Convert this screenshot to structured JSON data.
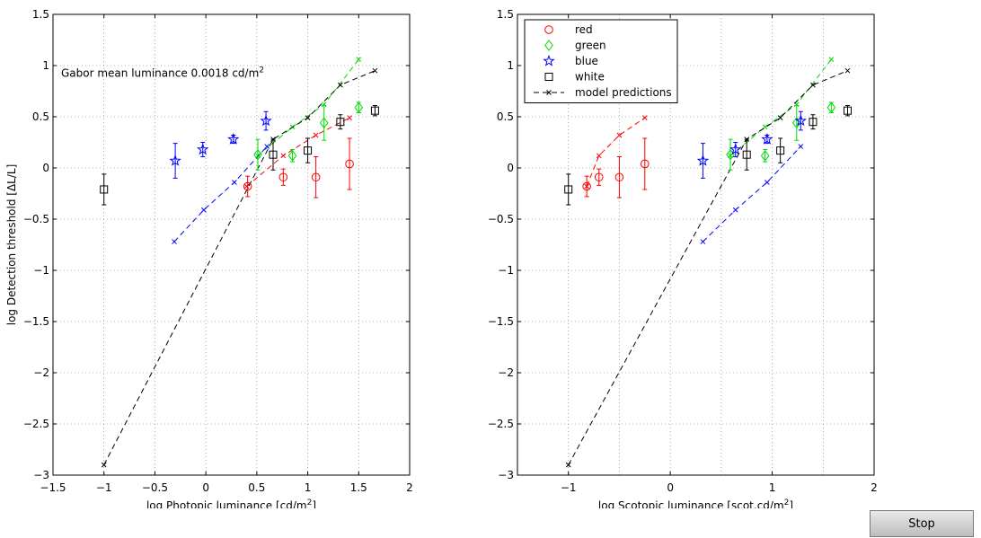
{
  "stop_button": {
    "label": "Stop"
  },
  "colors": {
    "red": "#ff0000",
    "green": "#00dd00",
    "blue": "#0000ff",
    "white": "#000000",
    "model": "#000000"
  },
  "legend_entries": [
    {
      "label": "red",
      "marker": "circle",
      "color": "#ff0000"
    },
    {
      "label": "green",
      "marker": "diamond",
      "color": "#00dd00"
    },
    {
      "label": "blue",
      "marker": "star",
      "color": "#0000ff"
    },
    {
      "label": "white",
      "marker": "square",
      "color": "#000000"
    },
    {
      "label": "model predictions",
      "marker": "dashed-x",
      "color": "#000000"
    }
  ],
  "chart_data": [
    {
      "type": "scatter",
      "title": "",
      "annotation": {
        "text": "Gabor mean luminance 0.0018 cd/m",
        "superscript": "2"
      },
      "xlabel": {
        "text": "log Photopic luminance [cd/m",
        "superscript": "2",
        "suffix": "]"
      },
      "ylabel": "log Detection threshold [ΔL/L]",
      "xlim": [
        -1.5,
        2
      ],
      "ylim": [
        -3,
        1.5
      ],
      "xticks": [
        -1.5,
        -1,
        -0.5,
        0,
        0.5,
        1,
        1.5,
        2
      ],
      "xtick_labels": [
        "−1.5",
        "−1",
        "−0.5",
        "0",
        "0.5",
        "1",
        "1.5",
        "2"
      ],
      "yticks": [
        -3,
        -2.5,
        -2,
        -1.5,
        -1,
        -0.5,
        0,
        0.5,
        1,
        1.5
      ],
      "ytick_labels": [
        "−3",
        "−2.5",
        "−2",
        "−1.5",
        "−1",
        "−0.5",
        "0",
        "0.5",
        "1",
        "1.5"
      ],
      "grid": true,
      "legend": null,
      "series": [
        {
          "name": "red",
          "x": [
            0.41,
            0.76,
            1.08,
            1.41
          ],
          "y": [
            -0.18,
            -0.09,
            -0.09,
            0.04
          ],
          "err": [
            0.1,
            0.08,
            0.2,
            0.25
          ]
        },
        {
          "name": "green",
          "x": [
            0.51,
            0.85,
            1.16,
            1.5
          ],
          "y": [
            0.13,
            0.12,
            0.44,
            0.59
          ],
          "err": [
            0.15,
            0.06,
            0.17,
            0.05
          ]
        },
        {
          "name": "blue",
          "x": [
            -0.3,
            -0.03,
            0.27,
            0.59
          ],
          "y": [
            0.07,
            0.18,
            0.28,
            0.46
          ],
          "err": [
            0.17,
            0.07,
            0.04,
            0.09
          ]
        },
        {
          "name": "white",
          "x": [
            -1.0,
            0.66,
            1.0,
            1.32,
            1.66
          ],
          "y": [
            -0.21,
            0.13,
            0.17,
            0.45,
            0.56
          ],
          "err": [
            0.15,
            0.15,
            0.12,
            0.07,
            0.05
          ]
        }
      ],
      "model_series": [
        {
          "name": "red model",
          "x": [
            0.4,
            0.76,
            1.08,
            1.41
          ],
          "y": [
            -0.18,
            0.12,
            0.32,
            0.49
          ]
        },
        {
          "name": "green model",
          "x": [
            0.51,
            0.85,
            1.16,
            1.5
          ],
          "y": [
            0.12,
            0.4,
            0.62,
            1.06
          ]
        },
        {
          "name": "blue model",
          "x": [
            -0.31,
            -0.02,
            0.28,
            0.6
          ],
          "y": [
            -0.72,
            -0.41,
            -0.14,
            0.21
          ]
        },
        {
          "name": "white model",
          "x": [
            -1.0,
            0.66,
            1.0,
            1.32,
            1.66
          ],
          "y": [
            -2.9,
            0.28,
            0.49,
            0.81,
            0.95
          ]
        }
      ]
    },
    {
      "type": "scatter",
      "title": "",
      "xlabel": {
        "text": "log Scotopic luminance [scot.cd/m",
        "superscript": "2",
        "suffix": "]"
      },
      "ylabel": "",
      "xlim": [
        -1.5,
        2
      ],
      "ylim": [
        -3,
        1.5
      ],
      "xticks": [
        -1,
        0,
        1,
        2
      ],
      "xtick_labels": [
        "−1",
        "0",
        "1",
        "2"
      ],
      "grid_x": [
        -1,
        -0.5,
        0,
        0.5,
        1,
        1.5,
        2
      ],
      "yticks": [
        -3,
        -2.5,
        -2,
        -1.5,
        -1,
        -0.5,
        0,
        0.5,
        1,
        1.5
      ],
      "ytick_labels": [
        "−3",
        "−2.5",
        "−2",
        "−1.5",
        "−1",
        "−0.5",
        "0",
        "0.5",
        "1",
        "1.5"
      ],
      "grid": true,
      "legend": "top-left",
      "series": [
        {
          "name": "red",
          "x": [
            -0.82,
            -0.7,
            -0.5,
            -0.25
          ],
          "y": [
            -0.18,
            -0.09,
            -0.09,
            0.04
          ],
          "err": [
            0.1,
            0.08,
            0.2,
            0.25
          ]
        },
        {
          "name": "green",
          "x": [
            0.59,
            0.93,
            1.24,
            1.58
          ],
          "y": [
            0.13,
            0.12,
            0.44,
            0.59
          ],
          "err": [
            0.15,
            0.06,
            0.17,
            0.05
          ]
        },
        {
          "name": "blue",
          "x": [
            0.32,
            0.64,
            0.95,
            1.28
          ],
          "y": [
            0.07,
            0.18,
            0.28,
            0.46
          ],
          "err": [
            0.17,
            0.07,
            0.04,
            0.09
          ]
        },
        {
          "name": "white",
          "x": [
            -1.0,
            0.75,
            1.08,
            1.4,
            1.74
          ],
          "y": [
            -0.21,
            0.13,
            0.17,
            0.45,
            0.56
          ],
          "err": [
            0.15,
            0.15,
            0.12,
            0.07,
            0.05
          ]
        }
      ],
      "model_series": [
        {
          "name": "red model",
          "x": [
            -0.82,
            -0.7,
            -0.5,
            -0.25
          ],
          "y": [
            -0.18,
            0.12,
            0.32,
            0.49
          ]
        },
        {
          "name": "green model",
          "x": [
            0.59,
            0.93,
            1.24,
            1.58
          ],
          "y": [
            0.12,
            0.4,
            0.62,
            1.06
          ]
        },
        {
          "name": "blue model",
          "x": [
            0.32,
            0.64,
            0.95,
            1.28
          ],
          "y": [
            -0.72,
            -0.41,
            -0.14,
            0.21
          ]
        },
        {
          "name": "white model",
          "x": [
            -1.0,
            0.75,
            1.08,
            1.4,
            1.74
          ],
          "y": [
            -2.9,
            0.28,
            0.49,
            0.81,
            0.95
          ]
        }
      ]
    }
  ]
}
